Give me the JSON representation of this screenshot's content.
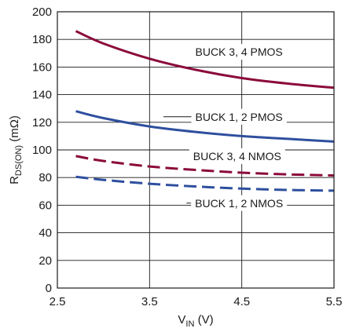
{
  "chart_data": {
    "type": "line",
    "xlabel": {
      "main": "V",
      "sub": "IN",
      "suffix": " (V)"
    },
    "ylabel": {
      "main": "R",
      "sub": "DS(ON)",
      "suffix": " (mΩ)"
    },
    "xlim": [
      2.5,
      5.5
    ],
    "ylim": [
      0,
      200
    ],
    "xticks": [
      2.5,
      3.5,
      4.5,
      5.5
    ],
    "xtick_labels": [
      "2.5",
      "3.5",
      "4.5",
      "5.5"
    ],
    "yticks": [
      0,
      20,
      40,
      60,
      80,
      100,
      120,
      140,
      160,
      180,
      200
    ],
    "ytick_labels": [
      "0",
      "20",
      "40",
      "60",
      "80",
      "100",
      "120",
      "140",
      "160",
      "180",
      "200"
    ],
    "grid": true,
    "series": [
      {
        "name": "BUCK 3, 4 PMOS",
        "color": "#8b0a3a",
        "dash": "solid",
        "x": [
          2.7,
          3.0,
          3.5,
          4.0,
          4.5,
          5.0,
          5.5
        ],
        "y": [
          186,
          177,
          166,
          158,
          152,
          148,
          145
        ]
      },
      {
        "name": "BUCK 1, 2 PMOS",
        "color": "#2e4f9e",
        "dash": "solid",
        "x": [
          2.7,
          3.0,
          3.5,
          4.0,
          4.5,
          5.0,
          5.5
        ],
        "y": [
          128,
          123,
          117,
          113,
          110,
          108,
          106
        ]
      },
      {
        "name": "BUCK 3, 4 NMOS",
        "color": "#8b0a3a",
        "dash": "dashed",
        "x": [
          2.7,
          3.0,
          3.5,
          4.0,
          4.5,
          5.0,
          5.5
        ],
        "y": [
          95.5,
          92,
          88,
          85.5,
          83.5,
          82.3,
          81.5
        ]
      },
      {
        "name": "BUCK 1, 2 NMOS",
        "color": "#2e4f9e",
        "dash": "dashed",
        "x": [
          2.7,
          3.0,
          3.5,
          4.0,
          4.5,
          5.0,
          5.5
        ],
        "y": [
          80.5,
          78.3,
          75.5,
          73.5,
          72,
          71,
          70.5
        ]
      }
    ],
    "annotations": [
      {
        "text": "BUCK 3, 4 PMOS",
        "x": 4.47,
        "y": 171,
        "leader_to_x": null
      },
      {
        "text": "BUCK 1, 2 PMOS",
        "x": 4.47,
        "y": 124,
        "leader_to_x": 3.65
      },
      {
        "text": "BUCK 3, 4 NMOS",
        "x": 4.45,
        "y": 95.5,
        "leader_to_x": null
      },
      {
        "text": "BUCK 1, 2 NMOS",
        "x": 4.47,
        "y": 61.5,
        "leader_to_x": 3.9
      }
    ]
  }
}
